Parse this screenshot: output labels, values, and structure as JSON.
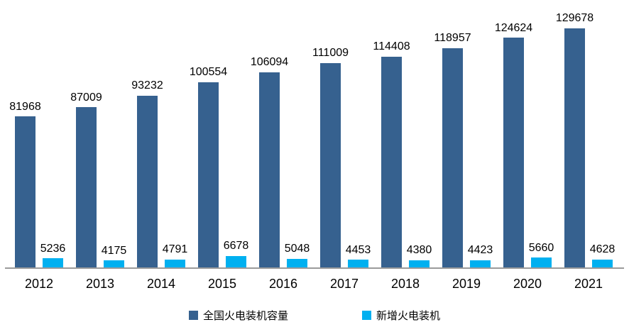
{
  "chart_data": {
    "type": "bar",
    "title": "",
    "xlabel": "",
    "ylabel": "",
    "categories": [
      "2012",
      "2013",
      "2014",
      "2015",
      "2016",
      "2017",
      "2018",
      "2019",
      "2020",
      "2021"
    ],
    "series": [
      {
        "name": "全国火电装机容量",
        "color": "#36618F",
        "values": [
          81968,
          87009,
          93232,
          100554,
          106094,
          111009,
          114408,
          118957,
          124624,
          129678
        ]
      },
      {
        "name": "新增火电装机",
        "color": "#00B0F0",
        "values": [
          5236,
          4175,
          4791,
          6678,
          5048,
          4453,
          4380,
          4423,
          5660,
          4628
        ]
      }
    ],
    "ylim": [
      0,
      130000
    ],
    "grid": false,
    "data_labels": true,
    "legend_position": "bottom",
    "axis_line_color": "#9b9b9b"
  }
}
